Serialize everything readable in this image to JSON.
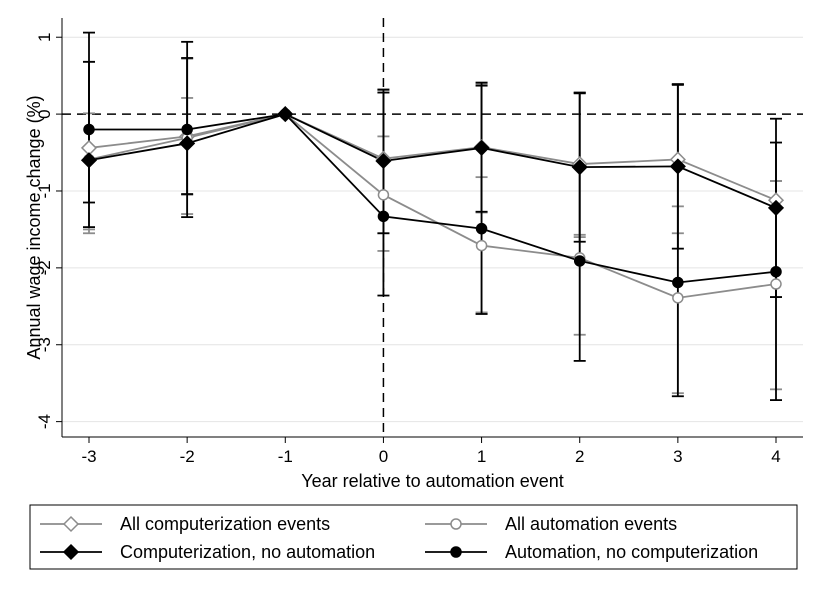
{
  "chart_data": {
    "type": "line",
    "xlabel": "Year relative to automation event",
    "ylabel": "Annual wage income change (%)",
    "x": [
      -3,
      -2,
      -1,
      0,
      1,
      2,
      3,
      4
    ],
    "xlim": [
      -3,
      4
    ],
    "ylim": [
      -4.2,
      1.25
    ],
    "x_ticks": [
      -3,
      -2,
      -1,
      0,
      1,
      2,
      3,
      4
    ],
    "y_ticks": [
      -4,
      -3,
      -2,
      -1,
      0,
      1
    ],
    "x_tick_labels": [
      "-3",
      "-2",
      "-1",
      "0",
      "1",
      "2",
      "3",
      "4"
    ],
    "y_tick_labels": [
      "-4",
      "-3",
      "-2",
      "-1",
      "0",
      "1"
    ],
    "grid": "horizontal",
    "reference_lines": {
      "horizontal_at_y": 0,
      "vertical_at_x": 0,
      "style": "dashed"
    },
    "legend_position": "bottom",
    "series": [
      {
        "name": "All computerization events",
        "marker": "diamond-hollow",
        "color": "#8c8c8c",
        "values": [
          -0.44,
          -0.29,
          0.0,
          -0.58,
          -0.43,
          -0.65,
          -0.59,
          -1.12
        ],
        "ci_lower": [
          -1.55,
          -1.3,
          0.0,
          -1.55,
          -1.28,
          -1.6,
          -1.55,
          -2.38
        ],
        "ci_upper": [
          0.68,
          0.72,
          0.0,
          0.31,
          0.39,
          0.28,
          0.39,
          -0.87
        ]
      },
      {
        "name": "All automation events",
        "marker": "circle-hollow",
        "color": "#8c8c8c",
        "values": [
          -0.59,
          -0.31,
          0.0,
          -1.05,
          -1.71,
          -1.87,
          -2.39,
          -2.21
        ],
        "ci_lower": [
          -1.5,
          -1.05,
          0.0,
          -1.78,
          -2.58,
          -2.87,
          -3.63,
          -3.58
        ],
        "ci_upper": [
          0.01,
          0.21,
          0.0,
          -0.29,
          -0.82,
          -1.57,
          -1.2,
          -0.87
        ]
      },
      {
        "name": "Computerization, no automation",
        "marker": "diamond-filled",
        "color": "#000000",
        "values": [
          -0.6,
          -0.38,
          0.0,
          -0.61,
          -0.44,
          -0.69,
          -0.68,
          -1.22
        ],
        "ci_lower": [
          -1.47,
          -1.34,
          0.0,
          -1.55,
          -1.27,
          -1.66,
          -1.75,
          -2.38
        ],
        "ci_upper": [
          0.68,
          0.73,
          0.0,
          0.28,
          0.37,
          0.27,
          0.38,
          -0.37
        ]
      },
      {
        "name": "Automation, no computerization",
        "marker": "circle-filled",
        "color": "#000000",
        "values": [
          -0.2,
          -0.2,
          0.0,
          -1.33,
          -1.49,
          -1.91,
          -2.19,
          -2.05
        ],
        "ci_lower": [
          -1.15,
          -1.04,
          0.0,
          -2.36,
          -2.6,
          -3.21,
          -3.67,
          -3.72
        ],
        "ci_upper": [
          1.06,
          0.94,
          0.0,
          0.32,
          0.41,
          0.28,
          0.39,
          -0.06
        ]
      }
    ]
  }
}
